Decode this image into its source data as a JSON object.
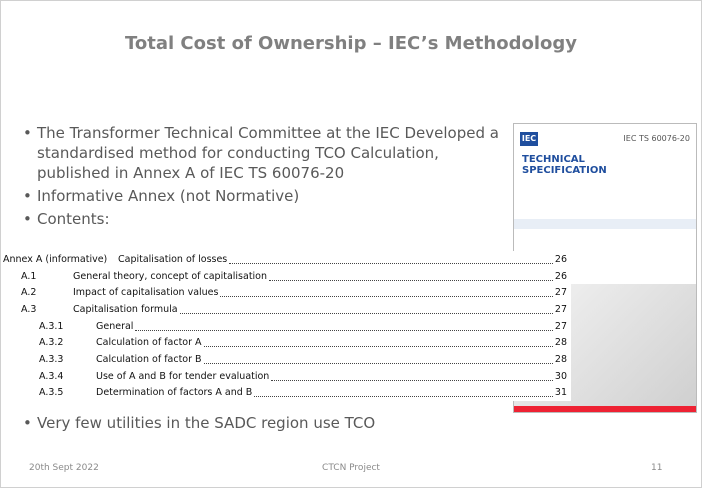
{
  "slide": {
    "title": "Total Cost of Ownership – IEC’s Methodology",
    "bullets": [
      "The Transformer Technical Committee at the IEC Developed a standardised method for conducting TCO Calculation, published in Annex A of IEC TS 60076-20",
      "Informative Annex (not Normative)",
      "Contents:"
    ],
    "toc": [
      {
        "num": "Annex A (informative)",
        "title": "Capitalisation of losses",
        "page": "26",
        "level": 0
      },
      {
        "num": "A.1",
        "title": "General theory, concept of capitalisation",
        "page": "26",
        "level": 1
      },
      {
        "num": "A.2",
        "title": "Impact of capitalisation values",
        "page": "27",
        "level": 1
      },
      {
        "num": "A.3",
        "title": "Capitalisation formula",
        "page": "27",
        "level": 1
      },
      {
        "num": "A.3.1",
        "title": "General",
        "page": "27",
        "level": 2
      },
      {
        "num": "A.3.2",
        "title": "Calculation of factor A",
        "page": "28",
        "level": 2
      },
      {
        "num": "A.3.3",
        "title": "Calculation of factor B",
        "page": "28",
        "level": 2
      },
      {
        "num": "A.3.4",
        "title": "Use of A and B for tender evaluation",
        "page": "30",
        "level": 2
      },
      {
        "num": "A.3.5",
        "title": "Determination of factors A and B",
        "page": "31",
        "level": 2
      }
    ],
    "last_bullet": "Very few utilities in the SADC region use TCO",
    "cover": {
      "logo": "IEC",
      "code": "IEC TS 60076-20",
      "heading": "TECHNICAL SPECIFICATION"
    },
    "footer": {
      "date": "20th Sept 2022",
      "project": "CTCN Project",
      "page": "11"
    }
  }
}
